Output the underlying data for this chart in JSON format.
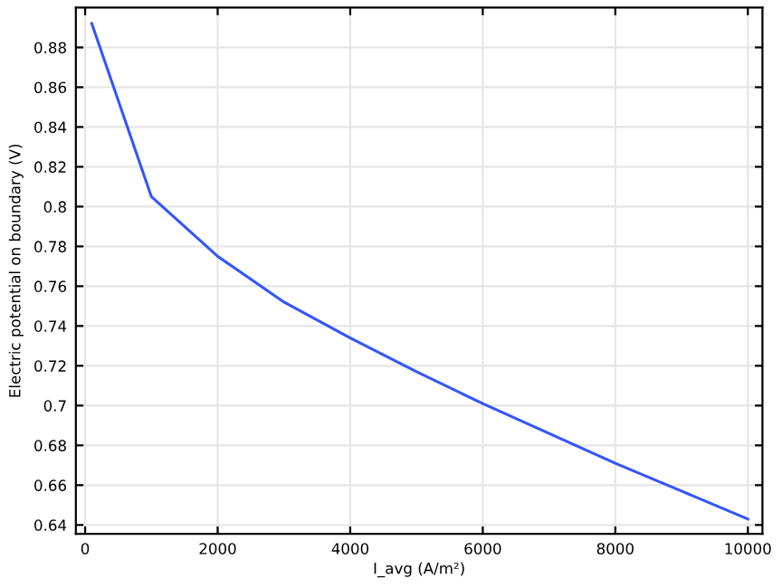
{
  "chart_data": {
    "type": "line",
    "xlabel": "I_avg (A/m²)",
    "ylabel": "Electric potential on boundary (V)",
    "x": [
      100,
      1000,
      2000,
      3000,
      4000,
      5000,
      6000,
      7000,
      8000,
      9000,
      10000
    ],
    "series": [
      {
        "color": "#3355ff",
        "values": [
          0.892,
          0.805,
          0.775,
          0.752,
          0.734,
          0.717,
          0.701,
          0.686,
          0.671,
          0.657,
          0.643
        ]
      }
    ],
    "xlim": [
      -140,
      10220
    ],
    "xticks": [
      0,
      2000,
      4000,
      6000,
      8000,
      10000
    ],
    "ylim": [
      0.6355,
      0.9
    ],
    "yticks": [
      0.64,
      0.66,
      0.68,
      0.7,
      0.72,
      0.74,
      0.76,
      0.78,
      0.8,
      0.82,
      0.84,
      0.86,
      0.88
    ],
    "grid": true,
    "marker": "none",
    "line_style": "solid"
  }
}
